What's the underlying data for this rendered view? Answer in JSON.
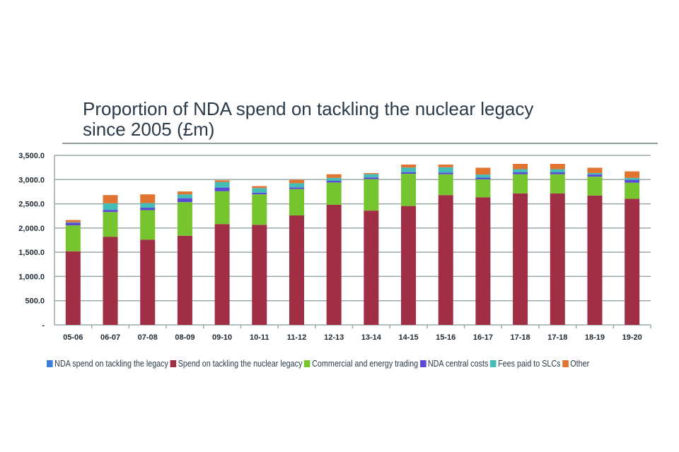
{
  "chart_data": {
    "type": "bar",
    "stacked": true,
    "title": "Proportion of NDA spend on tackling the nuclear legacy since 2005 (£m)",
    "title_lines": [
      "Proportion of NDA spend on tackling the nuclear legacy",
      "since 2005 (£m)"
    ],
    "xlabel": "",
    "ylabel": "",
    "ylim": [
      0,
      3500
    ],
    "yticks": [
      0,
      500,
      1000,
      1500,
      2000,
      2500,
      3000,
      3500
    ],
    "ytick_labels": [
      "-",
      "500.0",
      "1,000.0",
      "1,500.0",
      "2,000.0",
      "2,500.0",
      "3,000.0",
      "3,500.0"
    ],
    "grid": true,
    "legend_position": "bottom",
    "categories": [
      "05-06",
      "06-07",
      "07-08",
      "08-09",
      "09-10",
      "10-11",
      "11-12",
      "12-13",
      "13-14",
      "14-15",
      "15-16",
      "16-17",
      "17-18",
      "17-18",
      "18-19",
      "19-20"
    ],
    "series": [
      {
        "name": "NDA spend on tackling the legacy",
        "color": "#3a7fd5",
        "values": [
          0,
          0,
          0,
          0,
          0,
          0,
          0,
          0,
          0,
          0,
          0,
          0,
          0,
          0,
          0,
          0
        ]
      },
      {
        "name": "Spend on tackling the nuclear legacy",
        "color": "#a02e45",
        "values": [
          1520,
          1820,
          1760,
          1840,
          2080,
          2065,
          2260,
          2480,
          2360,
          2455,
          2680,
          2635,
          2715,
          2715,
          2670,
          2605
        ]
      },
      {
        "name": "Commercial and energy trading",
        "color": "#77c52e",
        "values": [
          535,
          510,
          610,
          695,
          680,
          630,
          545,
          460,
          650,
          665,
          430,
          370,
          395,
          395,
          390,
          330
        ]
      },
      {
        "name": "NDA central costs",
        "color": "#5c4ad6",
        "values": [
          55,
          45,
          50,
          80,
          75,
          35,
          35,
          35,
          35,
          35,
          35,
          35,
          40,
          40,
          45,
          60
        ]
      },
      {
        "name": "Fees paid to SLCs",
        "color": "#45bdb7",
        "values": [
          10,
          135,
          95,
          80,
          115,
          95,
          85,
          60,
          70,
          95,
          110,
          65,
          65,
          65,
          30,
          40
        ]
      },
      {
        "name": "Other",
        "color": "#e07430",
        "values": [
          45,
          170,
          180,
          60,
          35,
          40,
          70,
          75,
          20,
          60,
          55,
          140,
          110,
          110,
          110,
          135
        ]
      }
    ]
  }
}
